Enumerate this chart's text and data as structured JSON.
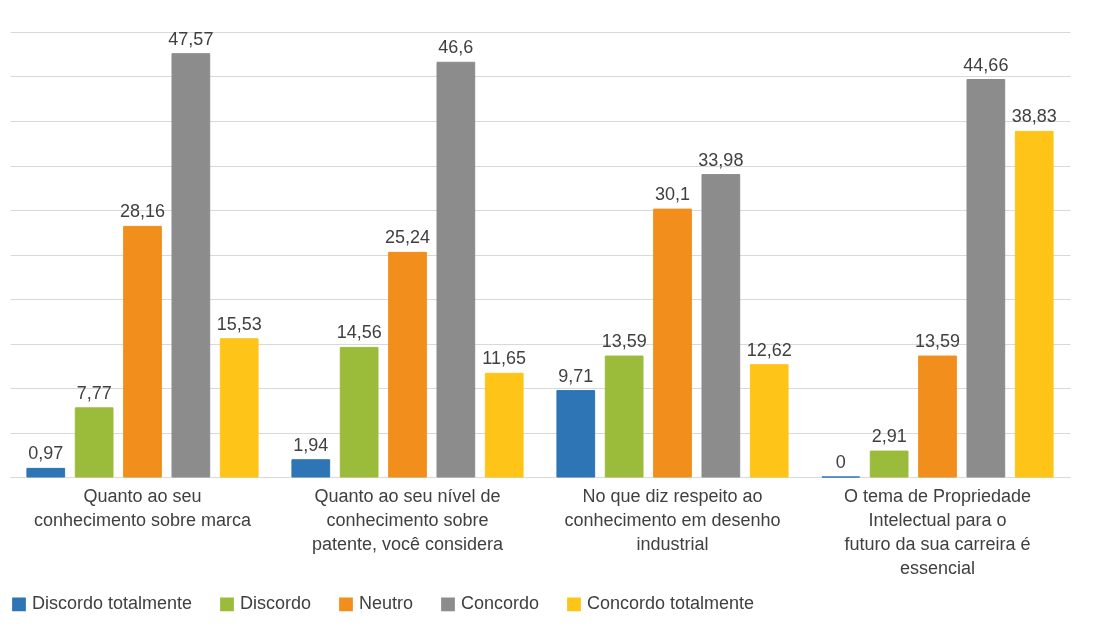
{
  "chart_data": {
    "type": "bar",
    "categories": [
      "Quanto ao seu conhecimento sobre marca",
      "Quanto ao seu nível de conhecimento sobre patente, você considera",
      "No que diz respeito ao conhecimento em desenho industrial",
      "O tema de Propriedade Intelectual para o futuro da sua carreira é essencial"
    ],
    "series": [
      {
        "name": "Discordo totalmente",
        "color": "#2e75b6",
        "values": [
          0.97,
          1.94,
          9.71,
          0
        ],
        "value_labels": [
          "0,97",
          "1,94",
          "9,71",
          "0"
        ]
      },
      {
        "name": "Discordo",
        "color": "#9bbb3b",
        "values": [
          7.77,
          14.56,
          13.59,
          2.91
        ],
        "value_labels": [
          "7,77",
          "14,56",
          "13,59",
          "2,91"
        ]
      },
      {
        "name": "Neutro",
        "color": "#f28e1c",
        "values": [
          28.16,
          25.24,
          30.1,
          13.59
        ],
        "value_labels": [
          "28,16",
          "25,24",
          "30,1",
          "13,59"
        ]
      },
      {
        "name": "Concordo",
        "color": "#8c8c8c",
        "values": [
          47.57,
          46.6,
          33.98,
          44.66
        ],
        "value_labels": [
          "47,57",
          "46,6",
          "33,98",
          "44,66"
        ]
      },
      {
        "name": "Concordo totalmente",
        "color": "#fec418",
        "values": [
          15.53,
          11.65,
          12.62,
          38.83
        ],
        "value_labels": [
          "15,53",
          "11,65",
          "12,62",
          "38,83"
        ]
      }
    ],
    "ylim": [
      0,
      50
    ],
    "yticks": [
      0,
      {
        "value": 5,
        "label": null
      },
      {
        "value": 10,
        "label": null
      },
      {
        "value": 15,
        "label": null
      },
      {
        "value": 20,
        "label": null
      },
      {
        "value": 25,
        "label": null
      },
      {
        "value": 30,
        "label": null
      },
      {
        "value": 35,
        "label": null
      },
      {
        "value": 40,
        "label": null
      },
      {
        "value": 45,
        "label": null
      },
      {
        "value": 50,
        "label": null
      }
    ],
    "grid": "y",
    "legend": "bottom",
    "tick_labels": "x"
  }
}
